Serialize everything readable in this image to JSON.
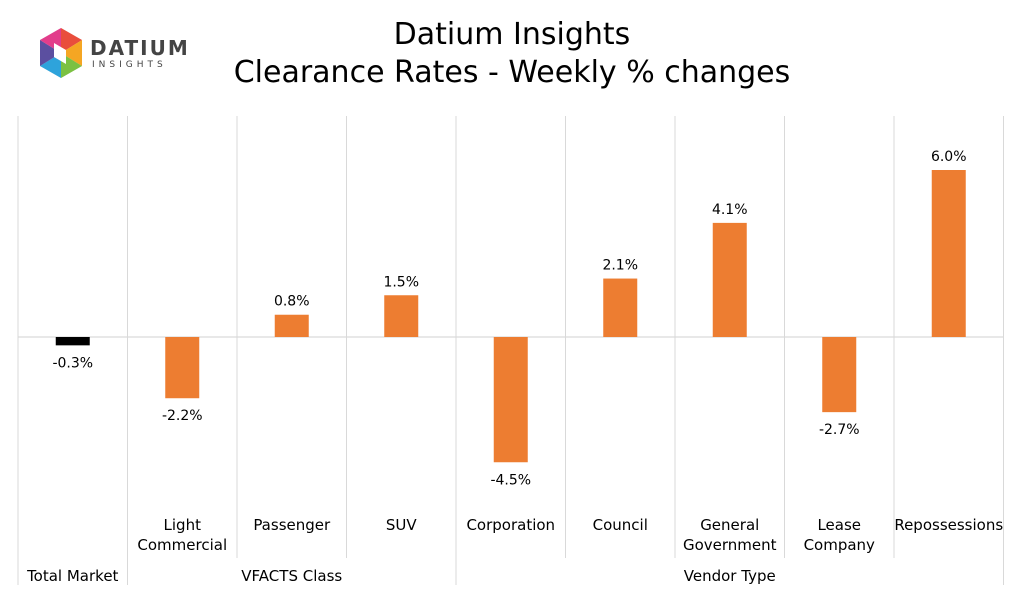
{
  "logo": {
    "word": "DATIUM",
    "sub": "INSIGHTS"
  },
  "title_line1": "Datium Insights",
  "title_line2": "Clearance Rates - Weekly % changes",
  "colors": {
    "total": "#000000",
    "bars": "#ED7D31",
    "grid": "#D9D9D9"
  },
  "chart_data": {
    "type": "bar",
    "title": "Datium Insights Clearance Rates - Weekly % changes",
    "categories": [
      "",
      "Light Commercial",
      "Passenger",
      "SUV",
      "Corporation",
      "Council",
      "General Government",
      "Lease Company",
      "Repossessions"
    ],
    "category_lines": [
      [
        ""
      ],
      [
        "Light",
        "Commercial"
      ],
      [
        "Passenger"
      ],
      [
        "SUV"
      ],
      [
        "Corporation"
      ],
      [
        "Council"
      ],
      [
        "General",
        "Government"
      ],
      [
        "Lease",
        "Company"
      ],
      [
        "Repossessions"
      ]
    ],
    "groups": [
      {
        "label": "Total Market",
        "start": 0,
        "end": 0
      },
      {
        "label": "VFACTS Class",
        "start": 1,
        "end": 3
      },
      {
        "label": "Vendor Type",
        "start": 4,
        "end": 8
      }
    ],
    "values": [
      -0.3,
      -2.2,
      0.8,
      1.5,
      -4.5,
      2.1,
      4.1,
      -2.7,
      6.0
    ],
    "data_labels": [
      "-0.3%",
      "-2.2%",
      "0.8%",
      "1.5%",
      "-4.5%",
      "2.1%",
      "4.1%",
      "-2.7%",
      "6.0%"
    ],
    "ylim": [
      -6.2,
      8.2
    ],
    "grid": true,
    "legend": "none"
  }
}
